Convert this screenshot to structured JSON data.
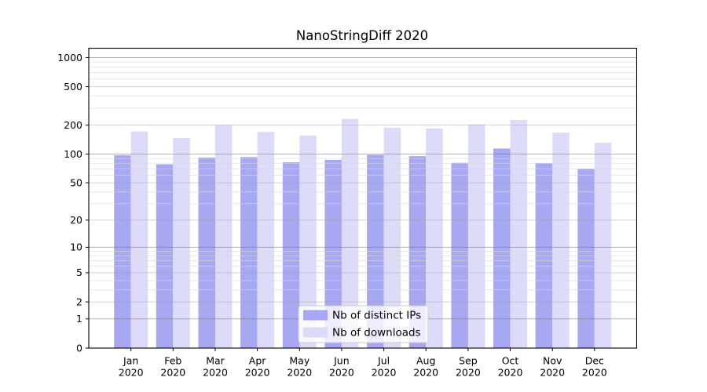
{
  "chart_data": {
    "type": "bar",
    "title": "NanoStringDiff 2020",
    "categories": [
      "Jan",
      "Feb",
      "Mar",
      "Apr",
      "May",
      "Jun",
      "Jul",
      "Aug",
      "Sep",
      "Oct",
      "Nov",
      "Dec"
    ],
    "category_year": "2020",
    "series": [
      {
        "name": "Nb of distinct IPs",
        "color": "#a7a7f2",
        "values": [
          97,
          78,
          92,
          93,
          82,
          87,
          98,
          95,
          81,
          114,
          80,
          70
        ]
      },
      {
        "name": "Nb of downloads",
        "color": "#dcdcfa",
        "values": [
          172,
          147,
          201,
          170,
          156,
          232,
          188,
          184,
          204,
          226,
          167,
          131
        ]
      }
    ],
    "yscale": "log1p",
    "yticks": [
      0,
      1,
      2,
      5,
      10,
      20,
      50,
      100,
      200,
      500,
      1000
    ],
    "ylim": [
      0,
      1250
    ],
    "xlabel": "",
    "ylabel": "",
    "grid": "horizontal-major-and-minor",
    "legend_position": "lower center",
    "frame_color": "#000000"
  }
}
